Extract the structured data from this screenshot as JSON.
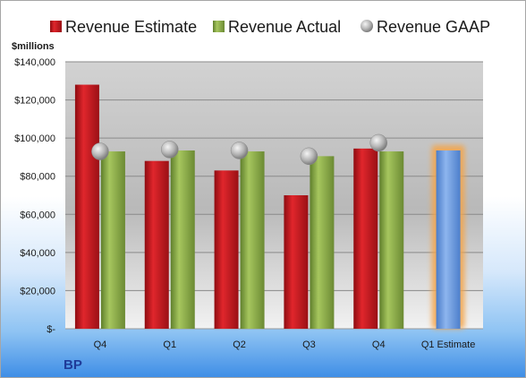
{
  "chart_data": {
    "type": "bar",
    "company": "BP",
    "unit_label": "$millions",
    "categories": [
      "Q4",
      "Q1",
      "Q2",
      "Q3",
      "Q4",
      "Q1 Estimate"
    ],
    "series": [
      {
        "name": "Revenue Estimate",
        "kind": "bar",
        "color": "#c0191f",
        "values": [
          128000,
          88000,
          83000,
          70000,
          94500,
          null
        ]
      },
      {
        "name": "Revenue Actual",
        "kind": "bar",
        "color": "#8fb04a",
        "values": [
          93000,
          93500,
          93000,
          90500,
          93000,
          null
        ]
      },
      {
        "name": "Revenue GAAP",
        "kind": "marker",
        "color": "#b0b0b0",
        "values": [
          93000,
          94000,
          93500,
          90500,
          97500,
          null
        ]
      }
    ],
    "estimate_bar": {
      "category": "Q1 Estimate",
      "value": 93500,
      "color": "#6d9de0",
      "glow": "#f5a54a"
    },
    "y_ticks": [
      0,
      20000,
      40000,
      60000,
      80000,
      100000,
      120000,
      140000
    ],
    "y_tick_labels": [
      "$-",
      "$20,000",
      "$40,000",
      "$60,000",
      "$80,000",
      "$100,000",
      "$120,000",
      "$140,000"
    ],
    "ylim": [
      0,
      140000
    ],
    "grid": true,
    "legend_position": "top"
  }
}
